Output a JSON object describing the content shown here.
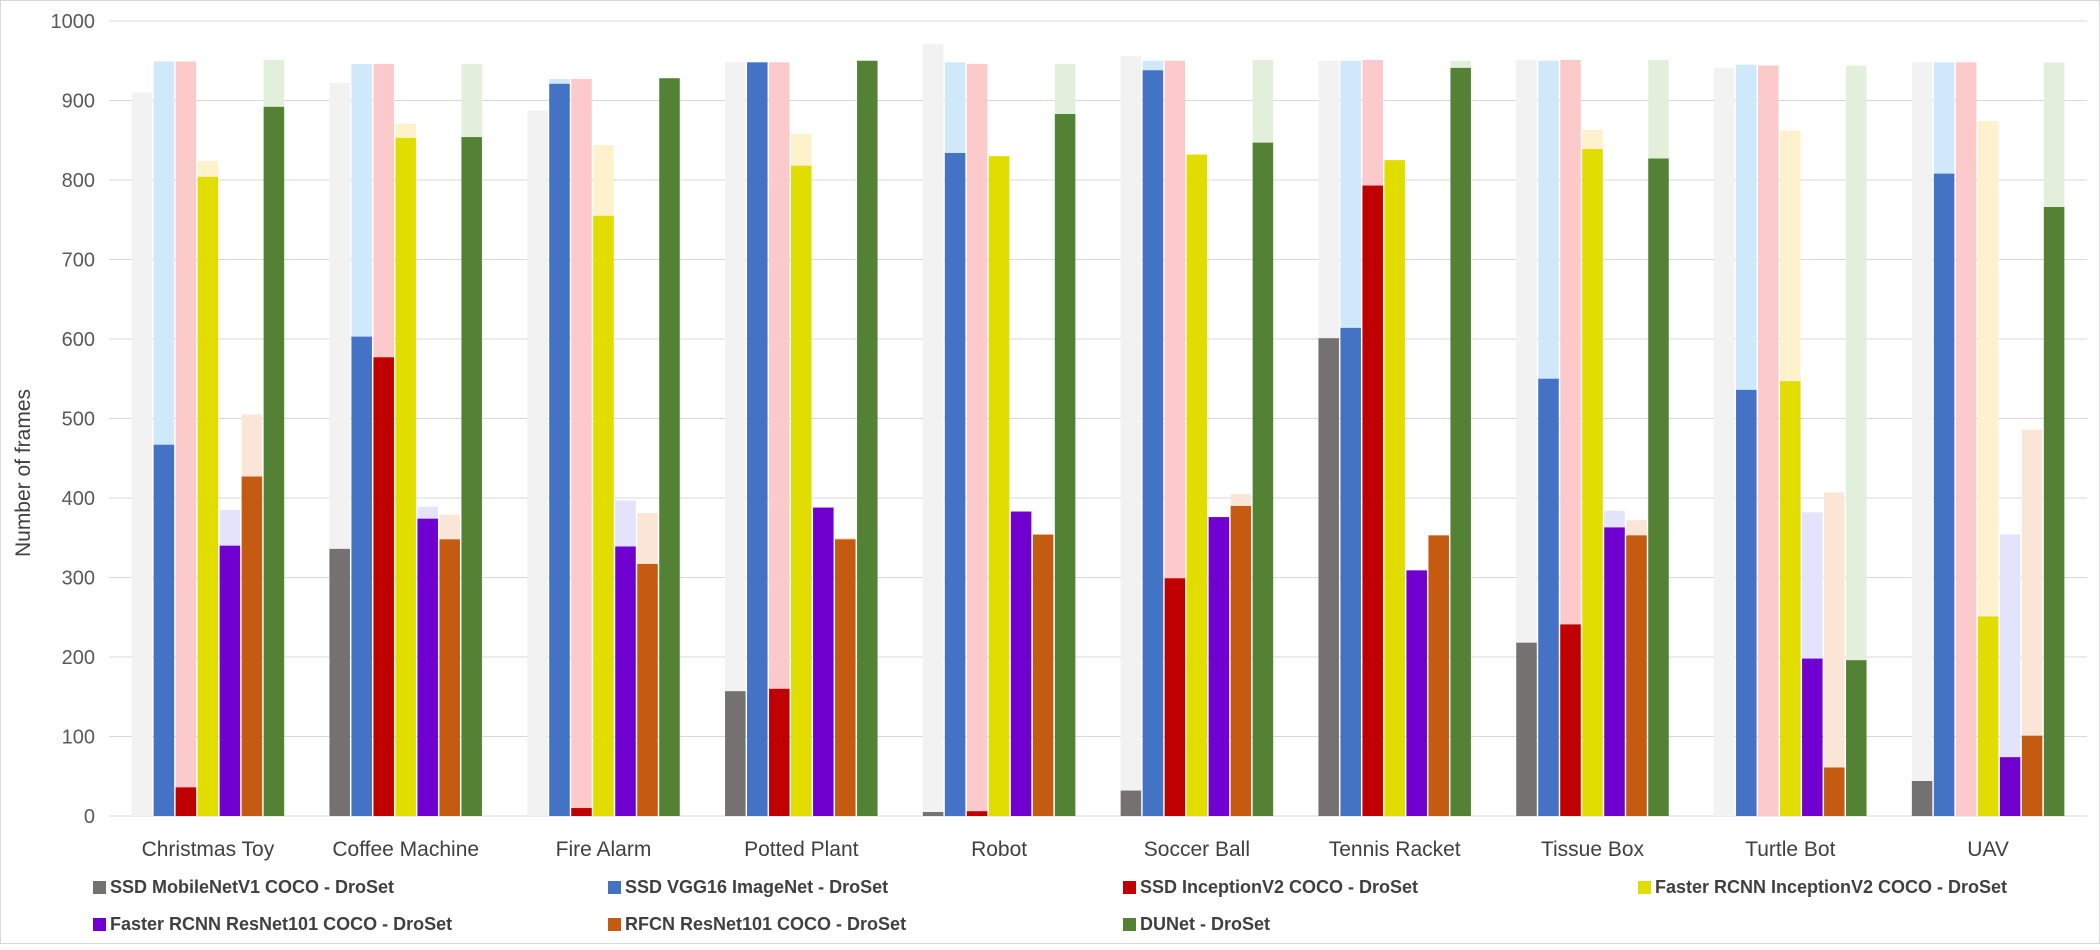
{
  "chart_data": {
    "type": "bar",
    "stacked_overlay": true,
    "title": "",
    "xlabel": "",
    "ylabel": "Number of frames",
    "ylim": [
      0,
      1000
    ],
    "yticks": [
      0,
      100,
      200,
      300,
      400,
      500,
      600,
      700,
      800,
      900,
      1000
    ],
    "grid": true,
    "legend_position": "bottom",
    "categories": [
      "Christmas Toy",
      "Coffee Machine",
      "Fire Alarm",
      "Potted Plant",
      "Robot",
      "Soccer Ball",
      "Tennis Racket",
      "Tissue Box",
      "Turtle Bot",
      "UAV"
    ],
    "series": [
      {
        "name": "SSD MobileNetV1 COCO - DroSet",
        "color": "#767171",
        "light_color": "#f2f2f2",
        "values": [
          0,
          336,
          0,
          157,
          5,
          32,
          601,
          218,
          0,
          44
        ],
        "totals": [
          910,
          922,
          887,
          948,
          971,
          956,
          950,
          951,
          941,
          948
        ]
      },
      {
        "name": "SSD VGG16 ImageNet - DroSet",
        "color": "#4472c4",
        "light_color": "#cfe9fb",
        "values": [
          467,
          603,
          921,
          948,
          834,
          938,
          614,
          550,
          536,
          808
        ],
        "totals": [
          949,
          946,
          927,
          948,
          948,
          950,
          950,
          950,
          945,
          948
        ]
      },
      {
        "name": "SSD InceptionV2 COCO - DroSet",
        "color": "#c00000",
        "light_color": "#fdcacb",
        "values": [
          36,
          577,
          10,
          160,
          6,
          299,
          793,
          241,
          0,
          0
        ],
        "totals": [
          949,
          946,
          927,
          948,
          946,
          950,
          951,
          951,
          944,
          948
        ]
      },
      {
        "name": "Faster RCNN InceptionV2 COCO - DroSet",
        "color": "#e1dd00",
        "light_color": "#fef2cc",
        "values": [
          804,
          853,
          755,
          818,
          830,
          832,
          825,
          839,
          547,
          251
        ],
        "totals": [
          824,
          871,
          844,
          858,
          830,
          832,
          825,
          863,
          862,
          874
        ]
      },
      {
        "name": "Faster RCNN ResNet101 COCO - DroSet",
        "color": "#7000d0",
        "light_color": "#e3e3fb",
        "values": [
          340,
          374,
          339,
          388,
          383,
          376,
          309,
          363,
          198,
          74
        ],
        "totals": [
          385,
          389,
          397,
          388,
          383,
          376,
          309,
          384,
          382,
          354
        ]
      },
      {
        "name": "RFCN ResNet101 COCO - DroSet",
        "color": "#c55a11",
        "light_color": "#fbe5d6",
        "values": [
          427,
          348,
          317,
          348,
          354,
          390,
          353,
          353,
          61,
          101
        ],
        "totals": [
          505,
          379,
          381,
          350,
          354,
          405,
          353,
          372,
          407,
          486
        ]
      },
      {
        "name": "DUNet - DroSet",
        "color": "#548235",
        "light_color": "#e2efda",
        "values": [
          892,
          854,
          928,
          950,
          883,
          847,
          941,
          827,
          196,
          766
        ],
        "totals": [
          951,
          946,
          928,
          950,
          946,
          951,
          950,
          951,
          944,
          948
        ]
      }
    ]
  }
}
